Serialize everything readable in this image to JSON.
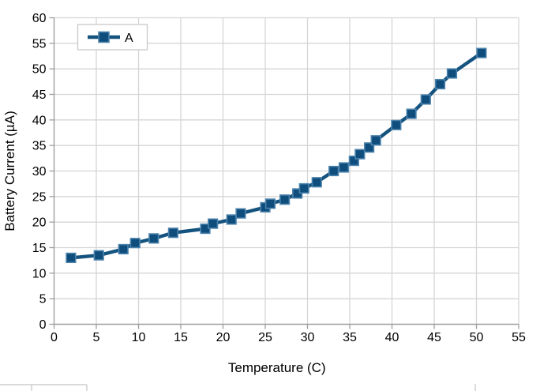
{
  "chart": {
    "legend": {
      "label": "A",
      "position": "top-left"
    },
    "x_axis": {
      "title": "Temperature (C)",
      "min": 0,
      "max": 55,
      "tick_step": 5,
      "tick_labels": [
        "0",
        "5",
        "10",
        "15",
        "20",
        "25",
        "30",
        "35",
        "40",
        "45",
        "50",
        "55"
      ]
    },
    "y_axis": {
      "title": "Battery Current (µA)",
      "min": 0,
      "max": 60,
      "tick_step": 5,
      "tick_labels": [
        "0",
        "5",
        "10",
        "15",
        "20",
        "25",
        "30",
        "35",
        "40",
        "45",
        "50",
        "55",
        "60"
      ]
    },
    "colors": {
      "line": "#15537f",
      "marker_fill": "#0e4d7c",
      "marker_edge": "#4c83ad",
      "grid": "#d6d6d6",
      "axis": "#9e9e9e",
      "legend_border": "#c9c9c9",
      "text": "#000000",
      "background": "#ffffff",
      "bottom_fragment": "#c4c4c4"
    }
  },
  "chart_data": {
    "type": "line",
    "title": "",
    "xlabel": "Temperature (C)",
    "ylabel": "Battery Current (µA)",
    "xlim": [
      0,
      55
    ],
    "ylim": [
      0,
      60
    ],
    "grid": true,
    "legend_position": "top-left",
    "series": [
      {
        "name": "A",
        "marker": "square",
        "x": [
          2.0,
          5.3,
          8.2,
          9.6,
          11.8,
          14.1,
          17.9,
          18.8,
          21.0,
          22.1,
          25.0,
          25.6,
          27.3,
          28.8,
          29.6,
          31.1,
          33.1,
          34.3,
          35.5,
          36.2,
          37.3,
          38.1,
          40.5,
          42.3,
          44.0,
          45.7,
          47.1,
          50.6
        ],
        "y": [
          13.0,
          13.5,
          14.7,
          15.9,
          16.8,
          17.9,
          18.7,
          19.7,
          20.5,
          21.7,
          22.9,
          23.6,
          24.4,
          25.6,
          26.6,
          27.8,
          30.0,
          30.7,
          32.0,
          33.3,
          34.6,
          36.0,
          39.0,
          41.2,
          44.0,
          47.0,
          49.1,
          53.1
        ]
      }
    ]
  }
}
